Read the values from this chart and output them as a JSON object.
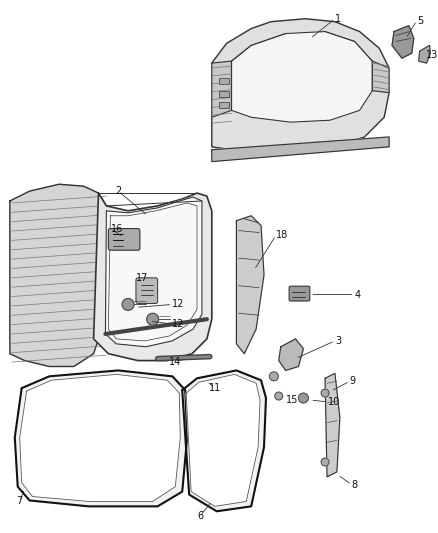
{
  "fig_width": 4.38,
  "fig_height": 5.33,
  "bg": "#ffffff",
  "line_color": "#333333",
  "dark_color": "#111111",
  "mid_gray": "#888888",
  "light_gray": "#dddddd",
  "hatch_color": "#777777"
}
